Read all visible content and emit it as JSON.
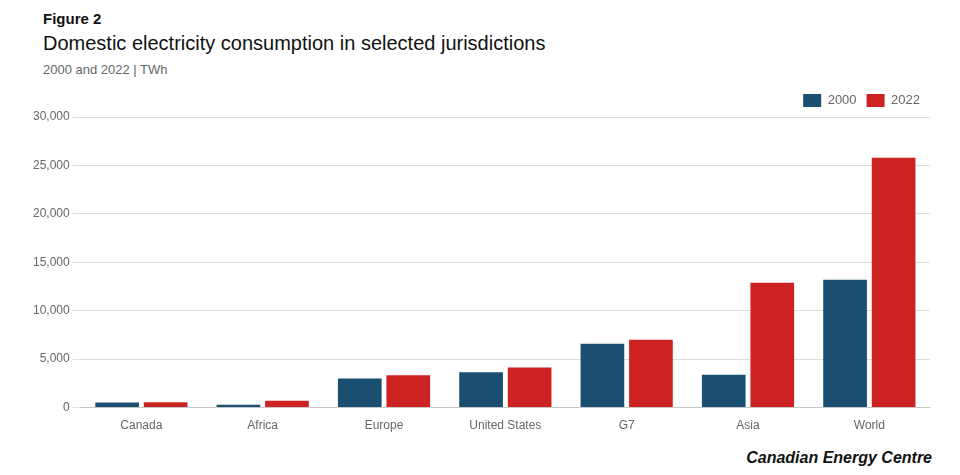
{
  "chart_data": {
    "type": "bar",
    "title": "Domestic electricity consumption in selected jurisdictions",
    "subtitle": "2000 and 2022  |  TWh",
    "annotations": [
      "Figure 2",
      "Canadian Energy Centre"
    ],
    "categories": [
      "Canada",
      "Africa",
      "Europe",
      "United States",
      "G7",
      "Asia",
      "World"
    ],
    "series": [
      {
        "name": "2000",
        "color": "#1a4f72",
        "values": [
          530,
          290,
          3000,
          3650,
          6600,
          3400,
          13200
        ]
      },
      {
        "name": "2022",
        "color": "#cc2222",
        "values": [
          560,
          700,
          3350,
          4150,
          7000,
          12900,
          25800
        ]
      }
    ],
    "ylim": [
      0,
      30000
    ],
    "yticks": [
      0,
      {
        "value": 5000,
        "label": "5,000"
      },
      {
        "value": 10000,
        "label": "10,000"
      },
      {
        "value": 15000,
        "label": "15,000"
      },
      {
        "value": 20000,
        "label": "20,000"
      },
      {
        "value": 25000,
        "label": "25,000"
      },
      {
        "value": 30000,
        "label": "30,000"
      }
    ],
    "grid": "y",
    "legend": "top-right"
  }
}
